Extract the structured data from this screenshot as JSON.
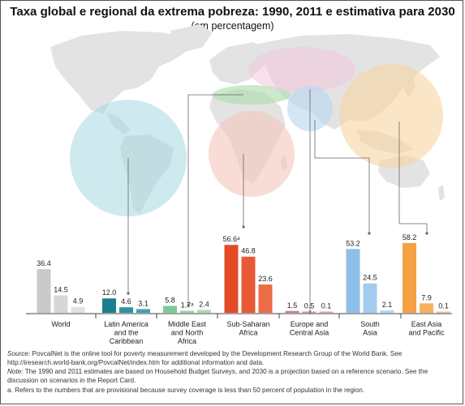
{
  "title": "Taxa global e regional da extrema pobreza: 1990, 2011 e estimativa para 2030",
  "subtitle": "(em percentagem)",
  "chart_data": {
    "type": "bar",
    "title": "Taxa global e regional da extrema pobreza: 1990, 2011 e estimativa para 2030",
    "subtitle": "(em percentagem)",
    "series_order": [
      "1990",
      "2011",
      "2030"
    ],
    "groups": [
      {
        "label": "World",
        "values": [
          36.4,
          14.5,
          4.9
        ],
        "labels": [
          "36.4",
          "14.5",
          "4.9"
        ],
        "colors": [
          "#c9c9c9",
          "#d7d7d7",
          "#e2e2e2"
        ]
      },
      {
        "label": "Latin America and the Caribbean",
        "values": [
          12.0,
          4.6,
          3.1
        ],
        "labels": [
          "12.0",
          "4.6",
          "3.1"
        ],
        "colors": [
          "#1c7f8c",
          "#2f93a0",
          "#3fa3b0"
        ]
      },
      {
        "label": "Middle East and North Africa",
        "values": [
          5.8,
          1.7,
          2.4
        ],
        "labels": [
          "5.8",
          "1.7ᵃ",
          "2.4"
        ],
        "colors": [
          "#7ec99a",
          "#95d4ab",
          "#a8dcba"
        ]
      },
      {
        "label": "Sub-Saharan Africa",
        "values": [
          56.6,
          46.8,
          23.6
        ],
        "labels": [
          "56.6ᵃ",
          "46.8",
          "23.6"
        ],
        "colors": [
          "#e24a25",
          "#e85a35",
          "#ec6d48"
        ]
      },
      {
        "label": "Europe and Central Asia",
        "values": [
          1.5,
          0.5,
          0.1
        ],
        "labels": [
          "1.5",
          "0.5",
          "0.1"
        ],
        "colors": [
          "#c77aa8",
          "#d08db4",
          "#d9a0c0"
        ]
      },
      {
        "label": "South Asia",
        "values": [
          53.2,
          24.5,
          2.1
        ],
        "labels": [
          "53.2",
          "24.5",
          "2.1"
        ],
        "colors": [
          "#8dbfe8",
          "#a2cbee",
          "#b5d7f2"
        ]
      },
      {
        "label": "East Asia and Pacific",
        "values": [
          58.2,
          7.9,
          0.1
        ],
        "labels": [
          "58.2",
          "7.9",
          "0.1"
        ],
        "colors": [
          "#f5a142",
          "#f7b15f",
          "#f9c27d"
        ]
      }
    ],
    "axis_labels": [
      [
        "World"
      ],
      [
        "Latin America",
        "and the",
        "Caribbean"
      ],
      [
        "Middle East",
        "and North",
        "Africa"
      ],
      [
        "Sub-Saharan",
        "Africa"
      ],
      [
        "Europe and",
        "Central Asia"
      ],
      [
        "South",
        "Asia"
      ],
      [
        "East Asia",
        "and Pacific"
      ]
    ],
    "ylim": [
      0,
      62
    ],
    "grid": false,
    "background": "world map with translucent regional circles"
  },
  "notes": {
    "source_label": "Source:",
    "source_text": " PovcalNet is the online tool for poverty measurement developed by the Development Research Group of the World Bank. See http://iresearch.world-bank.org/PovcalNet/index.htm for additional information and data.",
    "note_label": "Note:",
    "note_text": " The 1990 and 2011 estimates are based on Household Budget Surveys, and 2030 is a projection based on a reference scenario. See the discussion on scenarios in the Report Card.",
    "footnote": "a. Refers to the numbers that are provisional because survey coverage is less than 50 percent of population in the region."
  }
}
